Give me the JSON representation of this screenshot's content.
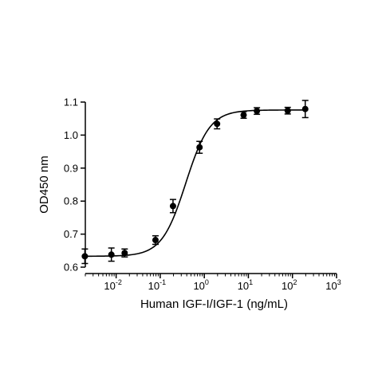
{
  "chart_data": {
    "type": "scatter",
    "title": "",
    "xlabel": "Human IGF-I/IGF-1 (ng/mL)",
    "ylabel": "OD450 nm",
    "x_scale": "log",
    "xlim": [
      0.002,
      1000
    ],
    "ylim": [
      0.6,
      1.1
    ],
    "x_ticks": [
      {
        "value": 0.01,
        "base": "10",
        "exp": "-2"
      },
      {
        "value": 0.1,
        "base": "10",
        "exp": "-1"
      },
      {
        "value": 1,
        "base": "10",
        "exp": "0"
      },
      {
        "value": 10,
        "base": "10",
        "exp": "1"
      },
      {
        "value": 100,
        "base": "10",
        "exp": "2"
      },
      {
        "value": 1000,
        "base": "10",
        "exp": "3"
      }
    ],
    "y_ticks": [
      {
        "value": 0.6,
        "label": "0.6"
      },
      {
        "value": 0.7,
        "label": "0.7"
      },
      {
        "value": 0.8,
        "label": "0.8"
      },
      {
        "value": 0.9,
        "label": "0.9"
      },
      {
        "value": 1.0,
        "label": "1.0"
      },
      {
        "value": 1.1,
        "label": "1.1"
      }
    ],
    "grid": false,
    "series": [
      {
        "x": [
          0.00195,
          0.0078,
          0.0156,
          0.0781,
          0.195,
          0.78,
          1.95,
          7.8,
          15.6,
          78,
          195
        ],
        "y": [
          0.633,
          0.638,
          0.643,
          0.682,
          0.785,
          0.963,
          1.034,
          1.061,
          1.073,
          1.074,
          1.079
        ],
        "err": [
          0.022,
          0.02,
          0.012,
          0.013,
          0.02,
          0.018,
          0.015,
          0.01,
          0.01,
          0.01,
          0.026
        ],
        "fit": {
          "bottom": 0.633,
          "top": 1.076,
          "ec50": 0.38,
          "hill": 1.6
        }
      }
    ],
    "colors": {
      "marker": "#000000",
      "line": "#000000"
    }
  }
}
